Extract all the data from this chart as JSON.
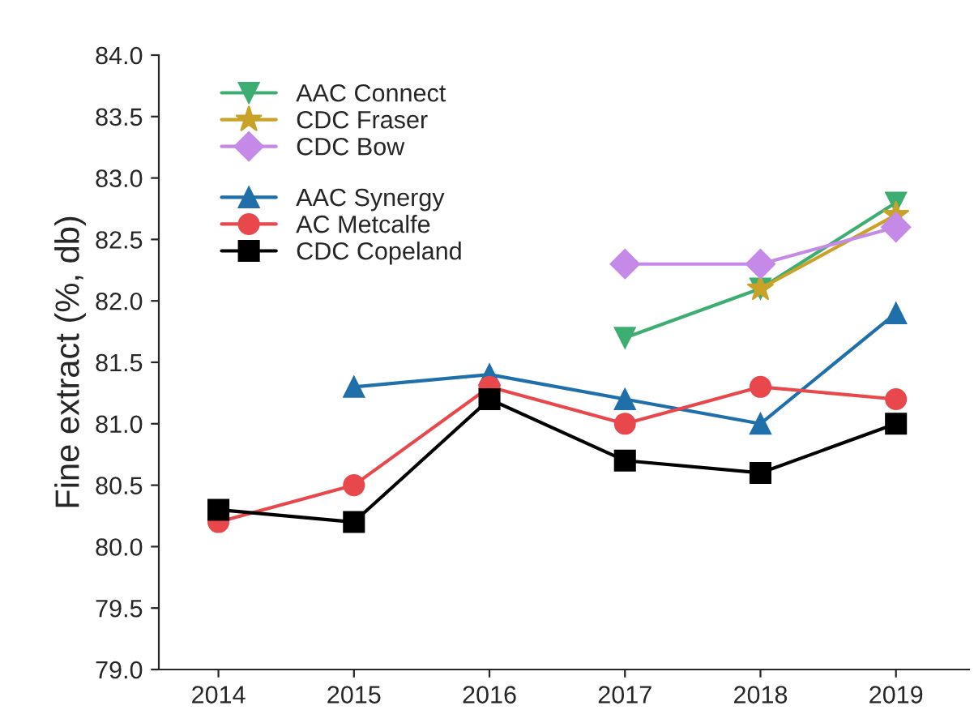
{
  "chart_data": {
    "type": "line",
    "ylabel": "Fine extract (%, db)",
    "x": [
      2014,
      2015,
      2016,
      2017,
      2018,
      2019
    ],
    "xlim": [
      2013.56,
      2019.54
    ],
    "xticks": [
      2014,
      2015,
      2016,
      2017,
      2018,
      2019
    ],
    "ylim": [
      79.0,
      84.0
    ],
    "yticks": [
      {
        "value": 79.0,
        "label": "79.0"
      },
      {
        "value": 79.5,
        "label": "79.5"
      },
      {
        "value": 80.0,
        "label": "80.0"
      },
      {
        "value": 80.5,
        "label": "80.5"
      },
      {
        "value": 81.0,
        "label": "81.0"
      },
      {
        "value": 81.5,
        "label": "81.5"
      },
      {
        "value": 82.0,
        "label": "82.0"
      },
      {
        "value": 82.5,
        "label": "82.5"
      },
      {
        "value": 83.0,
        "label": "83.0"
      },
      {
        "value": 83.5,
        "label": "83.5"
      },
      {
        "value": 84.0,
        "label": "84.0"
      }
    ],
    "grid": false,
    "legend": "top left",
    "line_style": "solid",
    "series": [
      {
        "name": "AAC Connect",
        "color": "#3dae72",
        "marker": "triangle_down",
        "values": [
          null,
          null,
          null,
          81.7,
          82.1,
          82.8
        ]
      },
      {
        "name": "CDC Fraser",
        "color": "#c9a227",
        "marker": "star",
        "values": [
          null,
          null,
          null,
          null,
          82.1,
          82.7
        ]
      },
      {
        "name": "CDC Bow",
        "color": "#c58ae8",
        "marker": "diamond",
        "values": [
          null,
          null,
          null,
          82.3,
          82.3,
          82.6
        ]
      },
      {
        "name": "AAC Synergy",
        "color": "#1f6fab",
        "marker": "triangle",
        "values": [
          null,
          81.3,
          81.4,
          81.2,
          81.0,
          81.9
        ]
      },
      {
        "name": "AC Metcalfe",
        "color": "#e8474c",
        "marker": "circle",
        "values": [
          80.2,
          80.5,
          81.3,
          81.0,
          81.3,
          81.2
        ]
      },
      {
        "name": "CDC Copeland",
        "color": "#000000",
        "marker": "square",
        "values": [
          80.3,
          80.2,
          81.2,
          80.7,
          80.6,
          81.0
        ]
      }
    ]
  }
}
